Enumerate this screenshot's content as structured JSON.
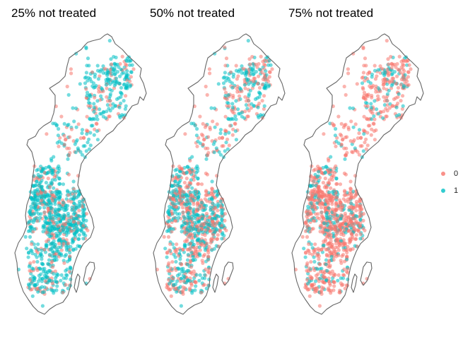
{
  "panels": [
    {
      "title": "25% not treated",
      "not_treated_share": 0.25
    },
    {
      "title": "50% not treated",
      "not_treated_share": 0.5
    },
    {
      "title": "75% not treated",
      "not_treated_share": 0.75
    }
  ],
  "legend": {
    "title": "",
    "items": [
      {
        "label": "0",
        "color": "#F8766D"
      },
      {
        "label": "1",
        "color": "#00BFC4"
      }
    ]
  },
  "map": {
    "region": "Sweden",
    "outline_color": "#666666",
    "point_alpha": 0.55,
    "points_per_panel": 1200
  }
}
